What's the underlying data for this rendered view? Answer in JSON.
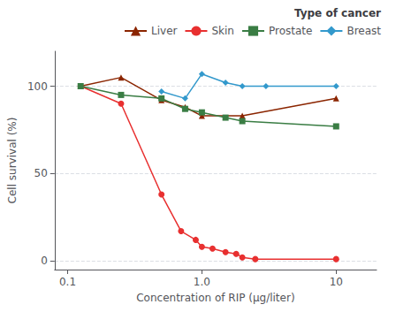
{
  "chart_data": {
    "type": "line",
    "legend_title": "Type of cancer",
    "xlabel": "Concentration of RIP (μg/liter)",
    "ylabel": "Cell survival (%)",
    "log": "x",
    "xlim": [
      0.08,
      20
    ],
    "xticks": [
      0.1,
      {
        "value": 1.0,
        "label": "1.0"
      },
      10
    ],
    "ylim": [
      -5,
      120
    ],
    "yticks": [
      0,
      50,
      100
    ],
    "grid": true,
    "legend": "upper right",
    "series": [
      {
        "name": "Liver",
        "color": "#8B2500",
        "marker": "triangle",
        "x": [
          0.125,
          0.25,
          0.5,
          0.75,
          1.0,
          2.0,
          10.0
        ],
        "values": [
          100,
          105,
          92,
          88,
          83,
          83,
          93
        ]
      },
      {
        "name": "Skin",
        "color": "#e83030",
        "marker": "circle",
        "x": [
          0.125,
          0.25,
          0.5,
          0.7,
          0.9,
          1.0,
          1.2,
          1.5,
          1.8,
          2.0,
          2.5,
          10.0
        ],
        "values": [
          100,
          90,
          38,
          17,
          12,
          8,
          7,
          5,
          4,
          2,
          1,
          1
        ]
      },
      {
        "name": "Prostate",
        "color": "#3a7d44",
        "marker": "square",
        "x": [
          0.125,
          0.25,
          0.5,
          0.75,
          1.0,
          1.5,
          2.0,
          10.0
        ],
        "values": [
          100,
          95,
          93,
          87,
          85,
          82,
          80,
          77
        ]
      },
      {
        "name": "Breast",
        "color": "#3399cc",
        "marker": "diamond",
        "x": [
          0.5,
          0.75,
          1.0,
          1.5,
          2.0,
          3.0,
          10.0
        ],
        "values": [
          97,
          93,
          107,
          102,
          100,
          100,
          100
        ]
      }
    ]
  }
}
